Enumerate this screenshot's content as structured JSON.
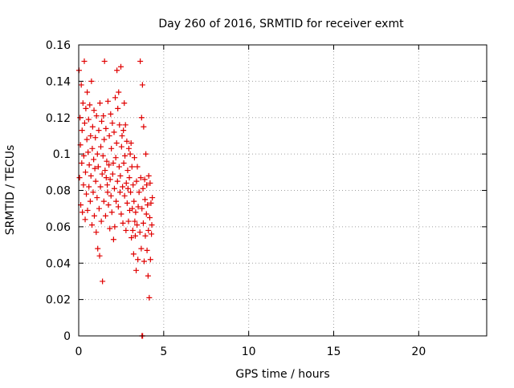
{
  "chart_data": {
    "type": "scatter",
    "title": "Day 260 of 2016, SRMTID for receiver exmt",
    "xlabel": "GPS time / hours",
    "ylabel": "SRMTID / TECUs",
    "xlim": [
      0,
      24
    ],
    "ylim": [
      0,
      0.16
    ],
    "x_ticks": [
      0,
      5,
      10,
      15,
      20
    ],
    "x_tick_labels": [
      "0",
      "5",
      "10",
      "15",
      "20"
    ],
    "y_ticks": [
      0,
      0.02,
      0.04,
      0.06,
      0.08,
      0.1,
      0.12,
      0.14,
      0.16
    ],
    "y_tick_labels": [
      "0",
      "0.02",
      "0.04",
      "0.06",
      "0.08",
      "0.1",
      "0.12",
      "0.14",
      "0.16"
    ],
    "grid": true,
    "marker": "plus",
    "color": "#e00000",
    "series": [
      {
        "x": [
          0.02,
          0.05,
          0.08,
          0.1,
          0.12,
          0.15,
          0.18,
          0.2,
          0.22,
          0.25,
          0.28,
          0.3,
          0.33,
          0.35,
          0.38,
          0.4,
          0.42,
          0.45,
          0.48,
          0.5,
          0.52,
          0.55,
          0.58,
          0.6,
          0.62,
          0.65,
          0.68,
          0.7,
          0.72,
          0.75,
          0.78,
          0.8,
          0.82,
          0.85,
          0.88,
          0.9,
          0.92,
          0.95,
          0.98,
          1.0,
          1.03,
          1.05,
          1.08,
          1.1,
          1.12,
          1.15,
          1.18,
          1.2,
          1.23,
          1.25,
          1.28,
          1.3,
          1.33,
          1.35,
          1.38,
          1.4,
          1.43,
          1.45,
          1.48,
          1.5,
          1.52,
          1.55,
          1.58,
          1.6,
          1.62,
          1.65,
          1.68,
          1.7,
          1.72,
          1.75,
          1.78,
          1.8,
          1.83,
          1.85,
          1.88,
          1.9,
          1.92,
          1.95,
          1.98,
          2.0,
          2.03,
          2.05,
          2.08,
          2.1,
          2.12,
          2.15,
          2.18,
          2.2,
          2.23,
          2.25,
          2.28,
          2.3,
          2.33,
          2.35,
          2.38,
          2.4,
          2.43,
          2.45,
          2.48,
          2.5,
          2.52,
          2.55,
          2.58,
          2.6,
          2.63,
          2.65,
          2.68,
          2.7,
          2.72,
          2.75,
          2.78,
          2.8,
          2.83,
          2.85,
          2.88,
          2.9,
          2.93,
          2.95,
          2.98,
          3.0,
          3.03,
          3.05,
          3.08,
          3.1,
          3.13,
          3.15,
          3.18,
          3.2,
          3.23,
          3.25,
          3.28,
          3.3,
          3.33,
          3.35,
          3.38,
          3.4,
          3.43,
          3.45,
          3.48,
          3.5,
          3.55,
          3.6,
          3.62,
          3.65,
          3.68,
          3.7,
          3.72,
          3.75,
          3.78,
          3.8,
          3.82,
          3.85,
          3.88,
          3.9,
          3.92,
          3.95,
          3.98,
          4.0,
          4.02,
          4.05,
          4.08,
          4.1,
          4.12,
          4.15,
          4.18,
          4.2,
          4.22,
          4.25,
          4.28,
          4.3,
          4.33
        ],
        "y": [
          0.146,
          0.087,
          0.12,
          0.105,
          0.072,
          0.138,
          0.095,
          0.113,
          0.068,
          0.128,
          0.083,
          0.099,
          0.151,
          0.117,
          0.064,
          0.09,
          0.125,
          0.078,
          0.108,
          0.134,
          0.069,
          0.101,
          0.119,
          0.082,
          0.094,
          0.127,
          0.074,
          0.11,
          0.088,
          0.14,
          0.061,
          0.103,
          0.115,
          0.079,
          0.097,
          0.124,
          0.066,
          0.092,
          0.109,
          0.085,
          0.057,
          0.121,
          0.076,
          0.1,
          0.048,
          0.093,
          0.113,
          0.07,
          0.044,
          0.128,
          0.082,
          0.104,
          0.063,
          0.118,
          0.089,
          0.03,
          0.099,
          0.121,
          0.074,
          0.108,
          0.151,
          0.091,
          0.066,
          0.114,
          0.087,
          0.096,
          0.083,
          0.079,
          0.129,
          0.072,
          0.094,
          0.11,
          0.059,
          0.086,
          0.122,
          0.077,
          0.103,
          0.068,
          0.117,
          0.089,
          0.095,
          0.053,
          0.112,
          0.081,
          0.06,
          0.131,
          0.098,
          0.074,
          0.106,
          0.146,
          0.085,
          0.125,
          0.071,
          0.134,
          0.093,
          0.116,
          0.079,
          0.088,
          0.148,
          0.067,
          0.104,
          0.11,
          0.082,
          0.062,
          0.113,
          0.095,
          0.128,
          0.077,
          0.099,
          0.116,
          0.058,
          0.084,
          0.107,
          0.073,
          0.091,
          0.081,
          0.063,
          0.103,
          0.087,
          0.069,
          0.1,
          0.079,
          0.106,
          0.054,
          0.093,
          0.07,
          0.058,
          0.083,
          0.045,
          0.074,
          0.098,
          0.063,
          0.055,
          0.068,
          0.036,
          0.085,
          0.061,
          0.093,
          0.042,
          0.071,
          0.079,
          0.057,
          0.151,
          0.087,
          0.048,
          0.12,
          0.07,
          0.138,
          0.081,
          0.062,
          0.115,
          0.041,
          0.086,
          0.075,
          0.055,
          0.1,
          0.067,
          0.083,
          0.047,
          0.072,
          0.033,
          0.058,
          0.088,
          0.021,
          0.065,
          0.084,
          0.042,
          0.073,
          0.056,
          0.061,
          0.076
        ]
      },
      {
        "x": [
          3.72,
          3.76
        ],
        "y": [
          0.0,
          0.0
        ]
      }
    ]
  }
}
